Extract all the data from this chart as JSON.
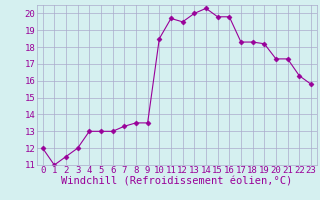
{
  "x": [
    0,
    1,
    2,
    3,
    4,
    5,
    6,
    7,
    8,
    9,
    10,
    11,
    12,
    13,
    14,
    15,
    16,
    17,
    18,
    19,
    20,
    21,
    22,
    23
  ],
  "y": [
    12.0,
    11.0,
    11.5,
    12.0,
    13.0,
    13.0,
    13.0,
    13.3,
    13.5,
    13.5,
    18.5,
    19.7,
    19.5,
    20.0,
    20.3,
    19.8,
    19.8,
    18.3,
    18.3,
    18.2,
    17.3,
    17.3,
    16.3,
    15.8
  ],
  "xlabel": "Windchill (Refroidissement éolien,°C)",
  "ylim": [
    11,
    20.5
  ],
  "xlim": [
    -0.5,
    23.5
  ],
  "yticks": [
    11,
    12,
    13,
    14,
    15,
    16,
    17,
    18,
    19,
    20
  ],
  "xticks": [
    0,
    1,
    2,
    3,
    4,
    5,
    6,
    7,
    8,
    9,
    10,
    11,
    12,
    13,
    14,
    15,
    16,
    17,
    18,
    19,
    20,
    21,
    22,
    23
  ],
  "line_color": "#990099",
  "marker": "D",
  "marker_size": 2.5,
  "bg_color": "#d5f0f0",
  "grid_color": "#aaaacc",
  "xlabel_color": "#990099",
  "xlabel_fontsize": 7.5,
  "ytick_fontsize": 6.5,
  "xtick_fontsize": 6.5
}
